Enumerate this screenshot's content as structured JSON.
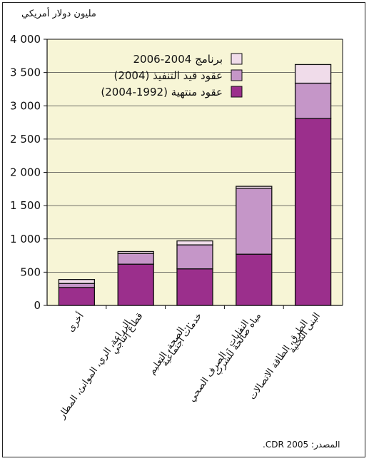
{
  "chart_data": {
    "type": "bar",
    "stacked": true,
    "ylabel": "مليون دولار أمريكي",
    "ylim": [
      0,
      4000
    ],
    "yticks": [
      0,
      500,
      1000,
      1500,
      2000,
      2500,
      3000,
      3500,
      4000
    ],
    "ytick_labels": [
      "0",
      "500",
      "1 000",
      "1 500",
      "2 000",
      "2 500",
      "3 000",
      "3 500",
      "4 000"
    ],
    "grid": true,
    "legend_position": "top-right",
    "categories": [
      [
        "أخرى"
      ],
      [
        "قطاع إنتاجي",
        "الزراعة، الري، الموانئ، المطار"
      ],
      [
        "خدمات اجتماعية",
        "الصحة، التعليم..."
      ],
      [
        "مياه صالحة للشرب",
        "النفايات - الصرف الصحي"
      ],
      [
        "البنى التحتية",
        "الطرق، الطاقة الاتصالات"
      ]
    ],
    "series": [
      {
        "name": "عقود منتهية (1992-2004)",
        "color": "#9b2f8c",
        "values": [
          270,
          620,
          550,
          770,
          2810
        ]
      },
      {
        "name": "عقود قيد التنفيذ (2004)",
        "color": "#c596c8",
        "values": [
          60,
          160,
          360,
          990,
          530
        ]
      },
      {
        "name": "برنامج 2004-2006",
        "color": "#f0dcea",
        "values": [
          60,
          30,
          60,
          30,
          280
        ]
      }
    ],
    "colors": {
      "plot_bg": "#f7f5d6",
      "outline": "#111111"
    }
  },
  "source_note": "المصدر: CDR 2005."
}
